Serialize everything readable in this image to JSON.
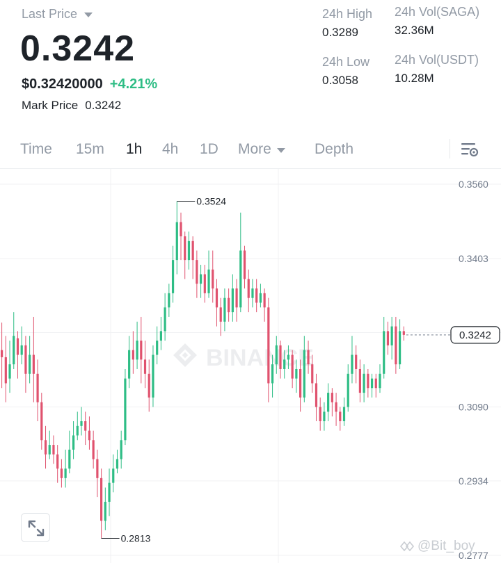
{
  "header": {
    "last_price_label": "Last Price",
    "last_price": "0.3242",
    "usd_price": "$0.32420000",
    "pct_change": "+4.21%",
    "mark_price_label": "Mark Price",
    "mark_price": "0.3242",
    "stats": {
      "high_label": "24h High",
      "high_value": "0.3289",
      "low_label": "24h Low",
      "low_value": "0.3058",
      "vol_base_label": "24h Vol(SAGA)",
      "vol_base_value": "32.36M",
      "vol_quote_label": "24h Vol(USDT)",
      "vol_quote_value": "10.28M"
    }
  },
  "tabs": {
    "time": "Time",
    "m15": "15m",
    "h1": "1h",
    "h4": "4h",
    "d1": "1D",
    "more": "More",
    "depth": "Depth",
    "active": "1h"
  },
  "chart": {
    "watermark": "BINANCE",
    "y_ticks": [
      "0.3560",
      "0.3403",
      "0.3247",
      "0.3090",
      "0.2934",
      "0.2777"
    ],
    "high_marker": "0.3524",
    "low_marker": "0.2813",
    "current_price": "0.3242",
    "colors": {
      "up": "#2ebd85",
      "down": "#e0526e",
      "grid": "#f0f1f3"
    }
  },
  "watermark_user": "@Bit_boy",
  "chart_data": {
    "type": "candlestick",
    "interval": "1h",
    "ylim": [
      0.2777,
      0.356
    ],
    "y_ticks": [
      0.356,
      0.3403,
      0.3247,
      0.309,
      0.2934,
      0.2777
    ],
    "highest": 0.3524,
    "lowest": 0.2813,
    "last": 0.3242,
    "candles": [
      [
        0.321,
        0.3195,
        0.3268,
        0.313
      ],
      [
        0.3195,
        0.314,
        0.324,
        0.31
      ],
      [
        0.315,
        0.318,
        0.323,
        0.312
      ],
      [
        0.318,
        0.324,
        0.329,
        0.317
      ],
      [
        0.3235,
        0.32,
        0.325,
        0.315
      ],
      [
        0.32,
        0.322,
        0.326,
        0.318
      ],
      [
        0.322,
        0.316,
        0.324,
        0.312
      ],
      [
        0.316,
        0.32,
        0.324,
        0.314
      ],
      [
        0.32,
        0.316,
        0.328,
        0.31
      ],
      [
        0.316,
        0.31,
        0.319,
        0.306
      ],
      [
        0.31,
        0.302,
        0.312,
        0.3
      ],
      [
        0.302,
        0.299,
        0.305,
        0.296
      ],
      [
        0.299,
        0.301,
        0.304,
        0.298
      ],
      [
        0.301,
        0.299,
        0.303,
        0.297
      ],
      [
        0.299,
        0.296,
        0.301,
        0.293
      ],
      [
        0.296,
        0.294,
        0.298,
        0.292
      ],
      [
        0.294,
        0.296,
        0.3,
        0.292
      ],
      [
        0.296,
        0.3,
        0.304,
        0.295
      ],
      [
        0.3,
        0.303,
        0.306,
        0.298
      ],
      [
        0.303,
        0.305,
        0.308,
        0.302
      ],
      [
        0.305,
        0.306,
        0.309,
        0.303
      ],
      [
        0.306,
        0.304,
        0.308,
        0.301
      ],
      [
        0.304,
        0.302,
        0.307,
        0.3
      ],
      [
        0.302,
        0.298,
        0.304,
        0.296
      ],
      [
        0.298,
        0.294,
        0.3,
        0.29
      ],
      [
        0.294,
        0.285,
        0.296,
        0.2813
      ],
      [
        0.285,
        0.289,
        0.292,
        0.283
      ],
      [
        0.289,
        0.293,
        0.296,
        0.286
      ],
      [
        0.293,
        0.296,
        0.299,
        0.291
      ],
      [
        0.296,
        0.298,
        0.3,
        0.295
      ],
      [
        0.298,
        0.302,
        0.304,
        0.296
      ],
      [
        0.302,
        0.315,
        0.317,
        0.301
      ],
      [
        0.315,
        0.321,
        0.324,
        0.313
      ],
      [
        0.321,
        0.319,
        0.325,
        0.316
      ],
      [
        0.319,
        0.323,
        0.327,
        0.317
      ],
      [
        0.323,
        0.319,
        0.328,
        0.314
      ],
      [
        0.319,
        0.316,
        0.323,
        0.313
      ],
      [
        0.316,
        0.311,
        0.319,
        0.308
      ],
      [
        0.311,
        0.32,
        0.322,
        0.309
      ],
      [
        0.32,
        0.323,
        0.326,
        0.318
      ],
      [
        0.323,
        0.325,
        0.328,
        0.321
      ],
      [
        0.325,
        0.33,
        0.333,
        0.323
      ],
      [
        0.33,
        0.333,
        0.335,
        0.328
      ],
      [
        0.333,
        0.34,
        0.343,
        0.331
      ],
      [
        0.34,
        0.348,
        0.3524,
        0.337
      ],
      [
        0.348,
        0.345,
        0.35,
        0.34
      ],
      [
        0.345,
        0.34,
        0.346,
        0.336
      ],
      [
        0.34,
        0.344,
        0.346,
        0.338
      ],
      [
        0.344,
        0.34,
        0.345,
        0.336
      ],
      [
        0.34,
        0.335,
        0.342,
        0.332
      ],
      [
        0.335,
        0.337,
        0.339,
        0.332
      ],
      [
        0.337,
        0.333,
        0.339,
        0.331
      ],
      [
        0.333,
        0.338,
        0.342,
        0.332
      ],
      [
        0.338,
        0.334,
        0.342,
        0.331
      ],
      [
        0.334,
        0.33,
        0.336,
        0.326
      ],
      [
        0.33,
        0.327,
        0.332,
        0.324
      ],
      [
        0.327,
        0.332,
        0.334,
        0.325
      ],
      [
        0.332,
        0.329,
        0.334,
        0.327
      ],
      [
        0.329,
        0.334,
        0.337,
        0.327
      ],
      [
        0.334,
        0.33,
        0.336,
        0.327
      ],
      [
        0.33,
        0.342,
        0.35,
        0.329
      ],
      [
        0.342,
        0.336,
        0.343,
        0.334
      ],
      [
        0.336,
        0.332,
        0.338,
        0.329
      ],
      [
        0.332,
        0.334,
        0.336,
        0.33
      ],
      [
        0.334,
        0.331,
        0.336,
        0.329
      ],
      [
        0.331,
        0.333,
        0.335,
        0.33
      ],
      [
        0.333,
        0.33,
        0.334,
        0.327
      ],
      [
        0.33,
        0.314,
        0.332,
        0.31
      ],
      [
        0.314,
        0.318,
        0.32,
        0.311
      ],
      [
        0.318,
        0.322,
        0.324,
        0.316
      ],
      [
        0.322,
        0.317,
        0.323,
        0.315
      ],
      [
        0.317,
        0.319,
        0.321,
        0.315
      ],
      [
        0.319,
        0.32,
        0.322,
        0.317
      ],
      [
        0.32,
        0.315,
        0.321,
        0.313
      ],
      [
        0.315,
        0.317,
        0.319,
        0.312
      ],
      [
        0.317,
        0.311,
        0.319,
        0.308
      ],
      [
        0.311,
        0.321,
        0.324,
        0.31
      ],
      [
        0.321,
        0.318,
        0.323,
        0.316
      ],
      [
        0.318,
        0.314,
        0.32,
        0.312
      ],
      [
        0.314,
        0.309,
        0.316,
        0.306
      ],
      [
        0.309,
        0.306,
        0.311,
        0.304
      ],
      [
        0.306,
        0.308,
        0.31,
        0.304
      ],
      [
        0.308,
        0.312,
        0.314,
        0.306
      ],
      [
        0.312,
        0.31,
        0.313,
        0.307
      ],
      [
        0.31,
        0.308,
        0.312,
        0.305
      ],
      [
        0.308,
        0.306,
        0.309,
        0.304
      ],
      [
        0.306,
        0.309,
        0.311,
        0.305
      ],
      [
        0.309,
        0.316,
        0.318,
        0.308
      ],
      [
        0.316,
        0.32,
        0.324,
        0.314
      ],
      [
        0.32,
        0.317,
        0.322,
        0.314
      ],
      [
        0.317,
        0.312,
        0.319,
        0.31
      ],
      [
        0.312,
        0.316,
        0.318,
        0.31
      ],
      [
        0.316,
        0.313,
        0.317,
        0.311
      ],
      [
        0.313,
        0.315,
        0.316,
        0.311
      ],
      [
        0.315,
        0.313,
        0.316,
        0.311
      ],
      [
        0.313,
        0.316,
        0.318,
        0.312
      ],
      [
        0.316,
        0.325,
        0.328,
        0.315
      ],
      [
        0.325,
        0.322,
        0.327,
        0.32
      ],
      [
        0.322,
        0.326,
        0.328,
        0.319
      ],
      [
        0.326,
        0.318,
        0.328,
        0.316
      ],
      [
        0.318,
        0.325,
        0.3275,
        0.317
      ],
      [
        0.325,
        0.3242,
        0.326,
        0.323
      ]
    ]
  }
}
